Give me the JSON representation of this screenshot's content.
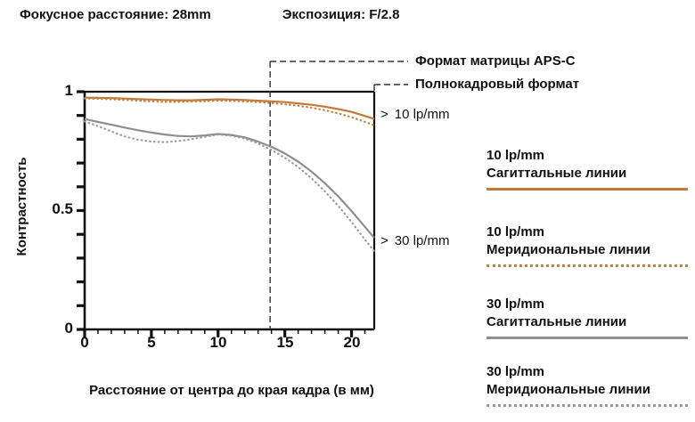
{
  "header": {
    "focal_length": "Фокусное расстояние: 28mm",
    "exposure": "Экспозиция: F/2.8"
  },
  "chart_data": {
    "type": "line",
    "title": "",
    "xlabel": "Расстояние от центра до края кадра (в мм)",
    "ylabel": "Контрастность",
    "xlim": [
      0,
      21.7
    ],
    "ylim": [
      0,
      1
    ],
    "grid": false,
    "legend_position": "right",
    "x_tick_labels": [
      "0",
      "5",
      "10",
      "15",
      "20"
    ],
    "y_tick_labels": [
      "1",
      "0.5",
      "0"
    ],
    "x": [
      0,
      1,
      2,
      3,
      4,
      5,
      6,
      7,
      8,
      9,
      10,
      11,
      12,
      13,
      14,
      15,
      16,
      17,
      18,
      19,
      20,
      21,
      21.7
    ],
    "series": [
      {
        "name": "10 lp/mm Сагиттальные линии",
        "line_style": "solid",
        "color": "#bf7a3c",
        "values": [
          0.975,
          0.974,
          0.973,
          0.971,
          0.969,
          0.967,
          0.965,
          0.964,
          0.964,
          0.966,
          0.968,
          0.967,
          0.965,
          0.962,
          0.959,
          0.956,
          0.951,
          0.945,
          0.937,
          0.927,
          0.915,
          0.898,
          0.885
        ]
      },
      {
        "name": "10 lp/mm Меридиональные линии",
        "line_style": "dotted",
        "color": "#c28243",
        "values": [
          0.972,
          0.97,
          0.968,
          0.965,
          0.962,
          0.959,
          0.957,
          0.957,
          0.958,
          0.96,
          0.962,
          0.961,
          0.959,
          0.956,
          0.952,
          0.947,
          0.941,
          0.933,
          0.922,
          0.909,
          0.893,
          0.873,
          0.858
        ]
      },
      {
        "name": "30 lp/mm Сагиттальные линии",
        "line_style": "solid",
        "color": "#8e8e8e",
        "values": [
          0.885,
          0.873,
          0.861,
          0.849,
          0.838,
          0.828,
          0.82,
          0.814,
          0.812,
          0.816,
          0.822,
          0.818,
          0.808,
          0.79,
          0.768,
          0.74,
          0.706,
          0.664,
          0.615,
          0.56,
          0.498,
          0.432,
          0.385
        ]
      },
      {
        "name": "30 lp/mm Меридиональные линии",
        "line_style": "dotted",
        "color": "#9a9a9a",
        "values": [
          0.875,
          0.855,
          0.833,
          0.812,
          0.798,
          0.79,
          0.788,
          0.792,
          0.8,
          0.81,
          0.82,
          0.815,
          0.803,
          0.782,
          0.755,
          0.722,
          0.683,
          0.636,
          0.581,
          0.52,
          0.452,
          0.378,
          0.33
        ]
      }
    ],
    "annotations": {
      "apsc": {
        "label": "Формат матрицы APS-C",
        "x": 13.9
      },
      "full_frame": {
        "label": "Полнокадровый формат",
        "x": 21.7
      },
      "curve_labels": [
        {
          "marker": ">",
          "text": "10 lp/mm"
        },
        {
          "marker": ">",
          "text": "30 lp/mm"
        }
      ]
    }
  },
  "legend": [
    {
      "line1": "10 lp/mm",
      "line2": "Сагиттальные линии",
      "style": "solid",
      "color": "#bf7a3c"
    },
    {
      "line1": "10 lp/mm",
      "line2": "Меридиональные линии",
      "style": "dotted",
      "color": "#c28243"
    },
    {
      "line1": "30 lp/mm",
      "line2": "Сагиттальные линии",
      "style": "solid",
      "color": "#8e8e8e"
    },
    {
      "line1": "30 lp/mm",
      "line2": "Меридиональные линии",
      "style": "dotted",
      "color": "#9a9a9a"
    }
  ]
}
